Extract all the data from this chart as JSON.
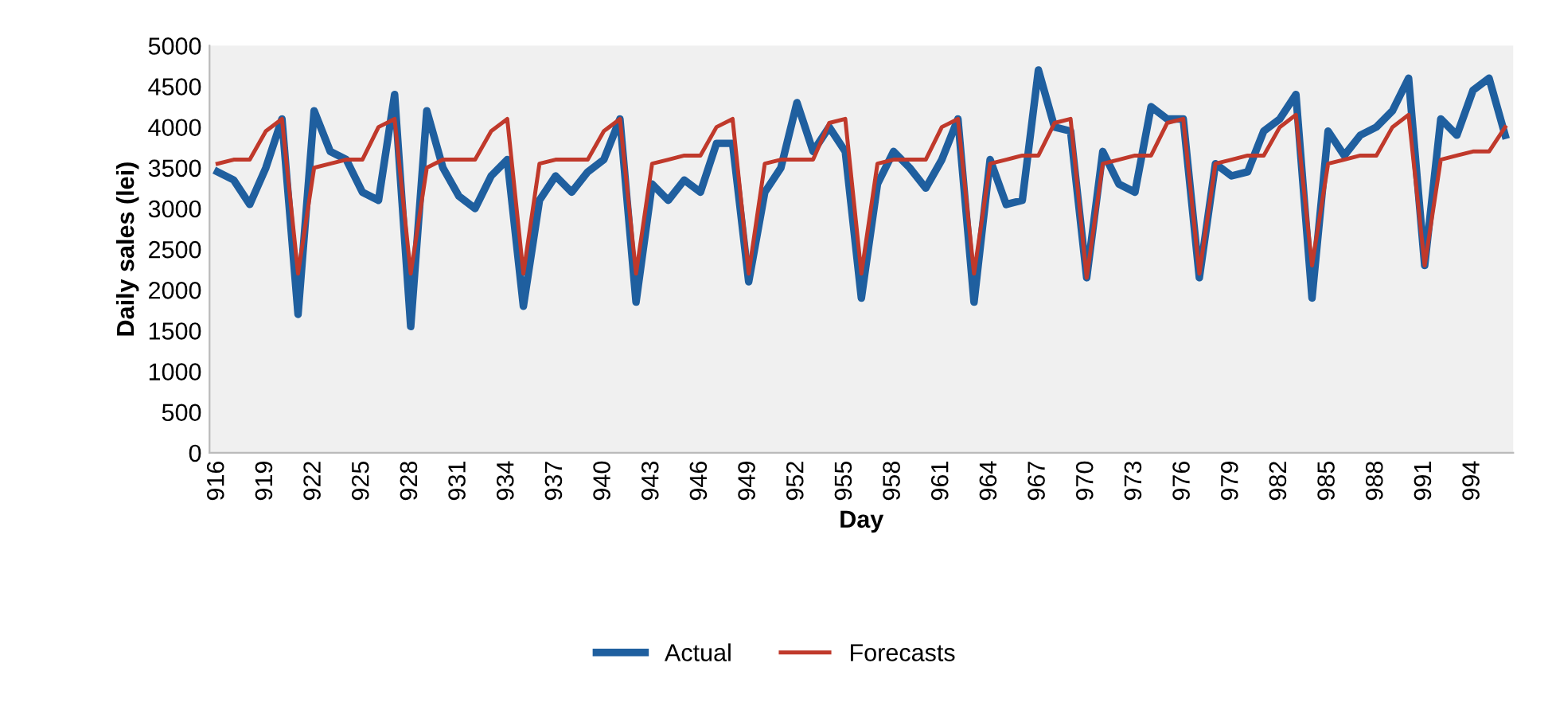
{
  "chart_data": {
    "type": "line",
    "xlabel": "Day",
    "ylabel": "Daily sales (lei)",
    "categories": [
      "916",
      null,
      null,
      "919",
      null,
      null,
      "922",
      null,
      null,
      "925",
      null,
      null,
      "928",
      null,
      null,
      "931",
      null,
      null,
      "934",
      null,
      null,
      "937",
      null,
      null,
      "940",
      null,
      null,
      "943",
      null,
      null,
      "946",
      null,
      null,
      "949",
      null,
      null,
      "952",
      null,
      null,
      "955",
      null,
      null,
      "958",
      null,
      null,
      "961",
      null,
      null,
      "964",
      null,
      null,
      "967",
      null,
      null,
      "970",
      null,
      null,
      "973",
      null,
      null,
      "976",
      null,
      null,
      "979",
      null,
      null,
      "982",
      null,
      null,
      "985",
      null,
      null,
      "988",
      null,
      null,
      "991",
      null,
      null,
      "994",
      null,
      null
    ],
    "series": [
      {
        "name": "Actual",
        "color": "#1f5f9f",
        "values": [
          3450,
          3350,
          3050,
          3500,
          4100,
          1700,
          4200,
          3700,
          3600,
          3200,
          3100,
          4400,
          1550,
          4200,
          3500,
          3150,
          3000,
          3400,
          3600,
          1800,
          3100,
          3400,
          3200,
          3450,
          3600,
          4100,
          1850,
          3300,
          3100,
          3350,
          3200,
          3800,
          3800,
          2100,
          3200,
          3500,
          4300,
          3700,
          4000,
          3700,
          1900,
          3300,
          3700,
          3500,
          3250,
          3600,
          4100,
          1850,
          3600,
          3050,
          3100,
          4700,
          4000,
          3950,
          2150,
          3700,
          3300,
          3200,
          4250,
          4100,
          4100,
          2150,
          3550,
          3400,
          3450,
          3950,
          4100,
          4400,
          1900,
          3950,
          3650,
          3900,
          4000,
          4200,
          4600,
          2300,
          4100,
          3900,
          4450,
          4600,
          3900
        ]
      },
      {
        "name": "Forecasts",
        "color": "#c0392b",
        "values": [
          3550,
          3600,
          3600,
          3950,
          4100,
          2200,
          3500,
          3550,
          3600,
          3600,
          4000,
          4100,
          2200,
          3500,
          3600,
          3600,
          3600,
          3950,
          4100,
          2200,
          3550,
          3600,
          3600,
          3600,
          3950,
          4100,
          2200,
          3550,
          3600,
          3650,
          3650,
          4000,
          4100,
          2200,
          3550,
          3600,
          3600,
          3600,
          4050,
          4100,
          2200,
          3550,
          3600,
          3600,
          3600,
          4000,
          4100,
          2200,
          3550,
          3600,
          3650,
          3650,
          4050,
          4100,
          2150,
          3550,
          3600,
          3650,
          3650,
          4050,
          4100,
          2200,
          3550,
          3600,
          3650,
          3650,
          4000,
          4150,
          2300,
          3550,
          3600,
          3650,
          3650,
          4000,
          4150,
          2300,
          3600,
          3650,
          3700,
          3700,
          4000
        ]
      }
    ],
    "ylim": [
      0,
      5000
    ],
    "yticks": [
      0,
      500,
      1000,
      1500,
      2000,
      2500,
      3000,
      3500,
      4000,
      4500,
      5000
    ],
    "legend": "bottom",
    "line_style": "solid",
    "marker": "none"
  }
}
